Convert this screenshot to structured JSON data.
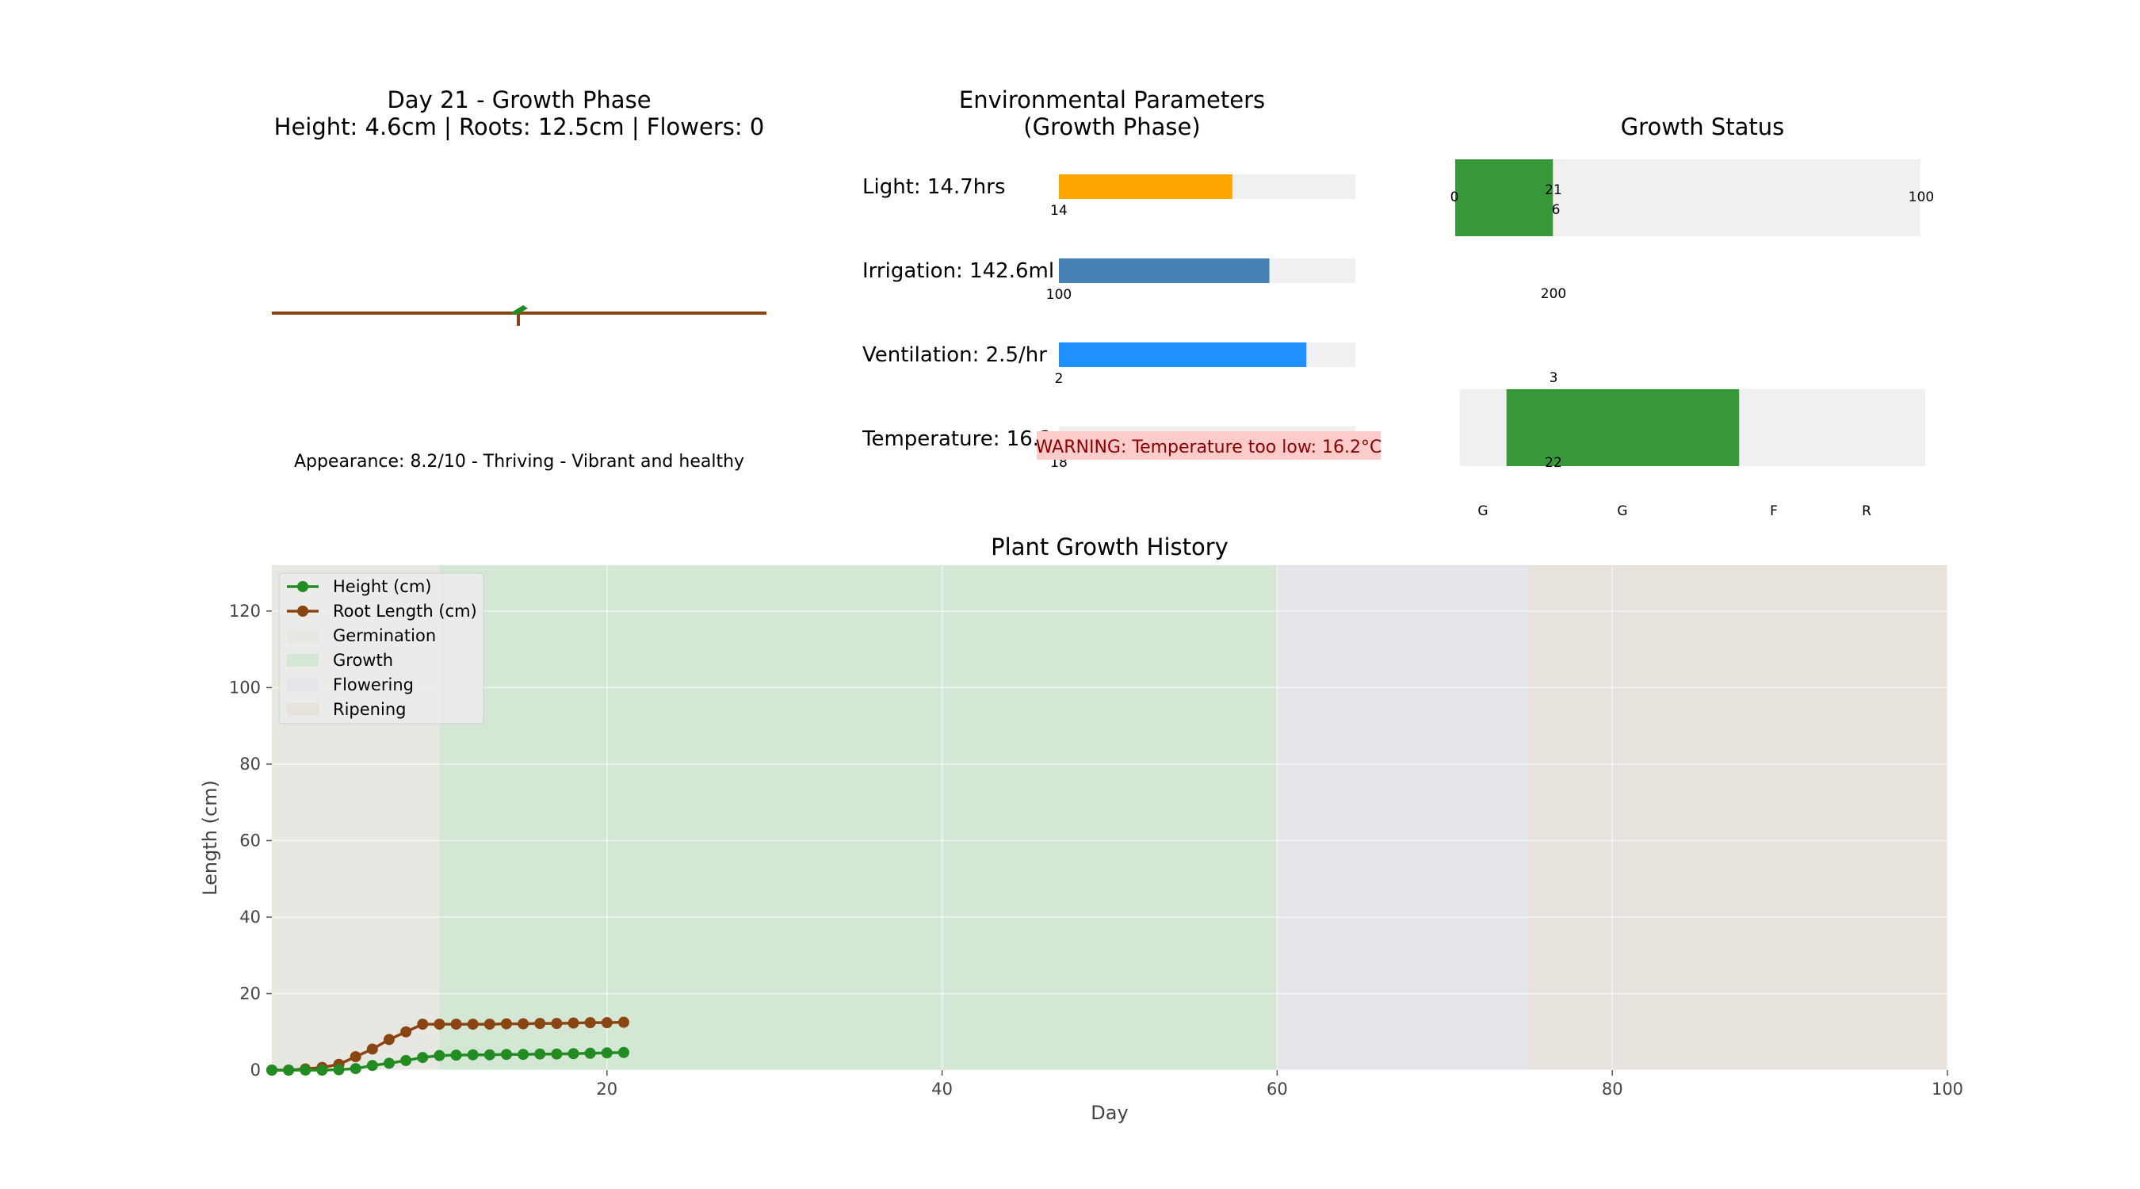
{
  "plant_view": {
    "title_line1": "Day 21 - Growth Phase",
    "title_line2": "Height: 4.6cm | Roots: 12.5cm | Flowers: 0",
    "appearance": "Appearance: 8.2/10 - Thriving - Vibrant and healthy",
    "soil_color": "#8b4513",
    "leaf_color": "#228b22"
  },
  "env": {
    "title_line1": "Environmental Parameters",
    "title_line2": "(Growth Phase)",
    "rows": [
      {
        "label": "Light: 14.7hrs",
        "min_label": "14",
        "fraction": 0.585,
        "color": "#ffa500"
      },
      {
        "label": "Irrigation: 142.6ml",
        "min_label": "100",
        "fraction": 0.71,
        "color": "#4682b4"
      },
      {
        "label": "Ventilation: 2.5/hr",
        "min_label": "2",
        "fraction": 0.835,
        "color": "#1e90ff"
      },
      {
        "label": "Temperature: 16.24806638289505°C",
        "min_label": "18",
        "fraction": 0.0,
        "color": "#ff0000"
      }
    ],
    "warning": "WARNING: Temperature too low: 16.2°C",
    "warning_bg": "#ffcccc"
  },
  "status": {
    "title": "Growth Status",
    "day_bar": {
      "min_label": "0",
      "value_label": "21",
      "max_label": "100",
      "fraction": 0.21,
      "color": "#38993a"
    },
    "mid_labels": [
      "6",
      "200",
      "3",
      "22"
    ],
    "phase_bar": {
      "start_fraction": 0.1,
      "end_fraction": 0.6,
      "color": "#38993a"
    },
    "phase_letters": [
      "G",
      "G",
      "F",
      "R"
    ]
  },
  "chart_data": {
    "type": "line",
    "title": "Plant Growth History",
    "xlabel": "Day",
    "ylabel": "Length (cm)",
    "xlim": [
      0,
      100
    ],
    "ylim": [
      0,
      132
    ],
    "xticks": [
      20,
      40,
      60,
      80,
      100
    ],
    "yticks": [
      0,
      20,
      40,
      60,
      80,
      100,
      120
    ],
    "grid": true,
    "legend_position": "top-left",
    "phases": [
      {
        "name": "Germination",
        "start": 0,
        "end": 10,
        "color": "#e8e8e2"
      },
      {
        "name": "Growth",
        "start": 10,
        "end": 60,
        "color": "#d3e7d4"
      },
      {
        "name": "Flowering",
        "start": 60,
        "end": 75,
        "color": "#e4e4ea"
      },
      {
        "name": "Ripening",
        "start": 75,
        "end": 100,
        "color": "#e7e3dc"
      }
    ],
    "series": [
      {
        "name": "Height (cm)",
        "color": "#228b22",
        "x": [
          0,
          1,
          2,
          3,
          4,
          5,
          6,
          7,
          8,
          9,
          10,
          11,
          12,
          13,
          14,
          15,
          16,
          17,
          18,
          19,
          20,
          21
        ],
        "values": [
          0,
          0,
          0,
          0,
          0.1,
          0.4,
          1.2,
          1.8,
          2.5,
          3.3,
          3.8,
          3.9,
          4.0,
          4.0,
          4.1,
          4.1,
          4.2,
          4.2,
          4.3,
          4.4,
          4.5,
          4.6
        ]
      },
      {
        "name": "Root Length (cm)",
        "color": "#8b4513",
        "x": [
          0,
          1,
          2,
          3,
          4,
          5,
          6,
          7,
          8,
          9,
          10,
          11,
          12,
          13,
          14,
          15,
          16,
          17,
          18,
          19,
          20,
          21
        ],
        "values": [
          0,
          0,
          0.3,
          0.7,
          1.5,
          3.5,
          5.5,
          8,
          10,
          12,
          12,
          12,
          12,
          12,
          12.1,
          12.1,
          12.2,
          12.2,
          12.3,
          12.4,
          12.4,
          12.5
        ]
      }
    ]
  }
}
